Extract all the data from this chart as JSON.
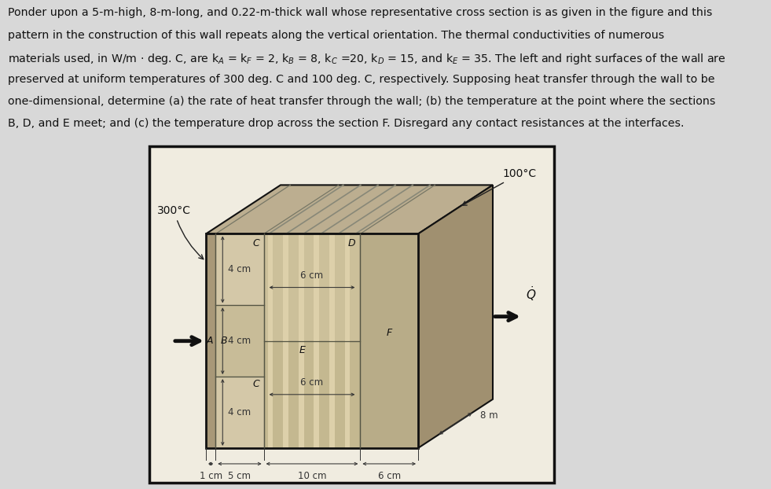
{
  "bg_color": "#f0ece0",
  "fig_bg": "#d8d8d8",
  "border_color": "#111111",
  "front_light": "#d0c4a8",
  "front_mid": "#c4b89a",
  "front_dark": "#b8aa88",
  "side_color": "#a09070",
  "top_color": "#bcae90",
  "stripe_light": "#ddd0aa",
  "stripe_dark": "#c8bc90",
  "col_A_color": "#a89878",
  "col_C_color": "#d4c8a8",
  "col_B_color": "#c8bc98",
  "col_D_color": "#ccc09a",
  "col_E_color": "#c4b890",
  "col_F_color": "#b8ac88",
  "arrow_color": "#222222",
  "text_color": "#111111",
  "dim_color": "#333333",
  "line1": "Ponder upon a 5-m-high, 8-m-long, and 0.22-m-thick wall whose representative cross section is as given in the figure and this",
  "line2": "pattern in the construction of this wall repeats along the vertical orientation. The thermal conductivities of numerous",
  "line3": "materials used, in W/m · deg. C, are kA = kF = 2, kB = 8, kC =20, kD = 15, and kE = 35. The left and right surfaces of the wall are",
  "line4": "preserved at uniform temperatures of 300 deg. C and 100 deg. C, respectively. Supposing heat transfer through the wall to be",
  "line5": "one-dimensional, determine (a) the rate of heat transfer through the wall; (b) the temperature at the point where the sections",
  "line6": "B, D, and E meet; and (c) the temperature drop across the section F. Disregard any contact resistances at the interfaces.",
  "font_size_text": 10.2,
  "font_size_label": 9.0,
  "font_size_dim": 8.5,
  "font_size_temp": 10.0
}
